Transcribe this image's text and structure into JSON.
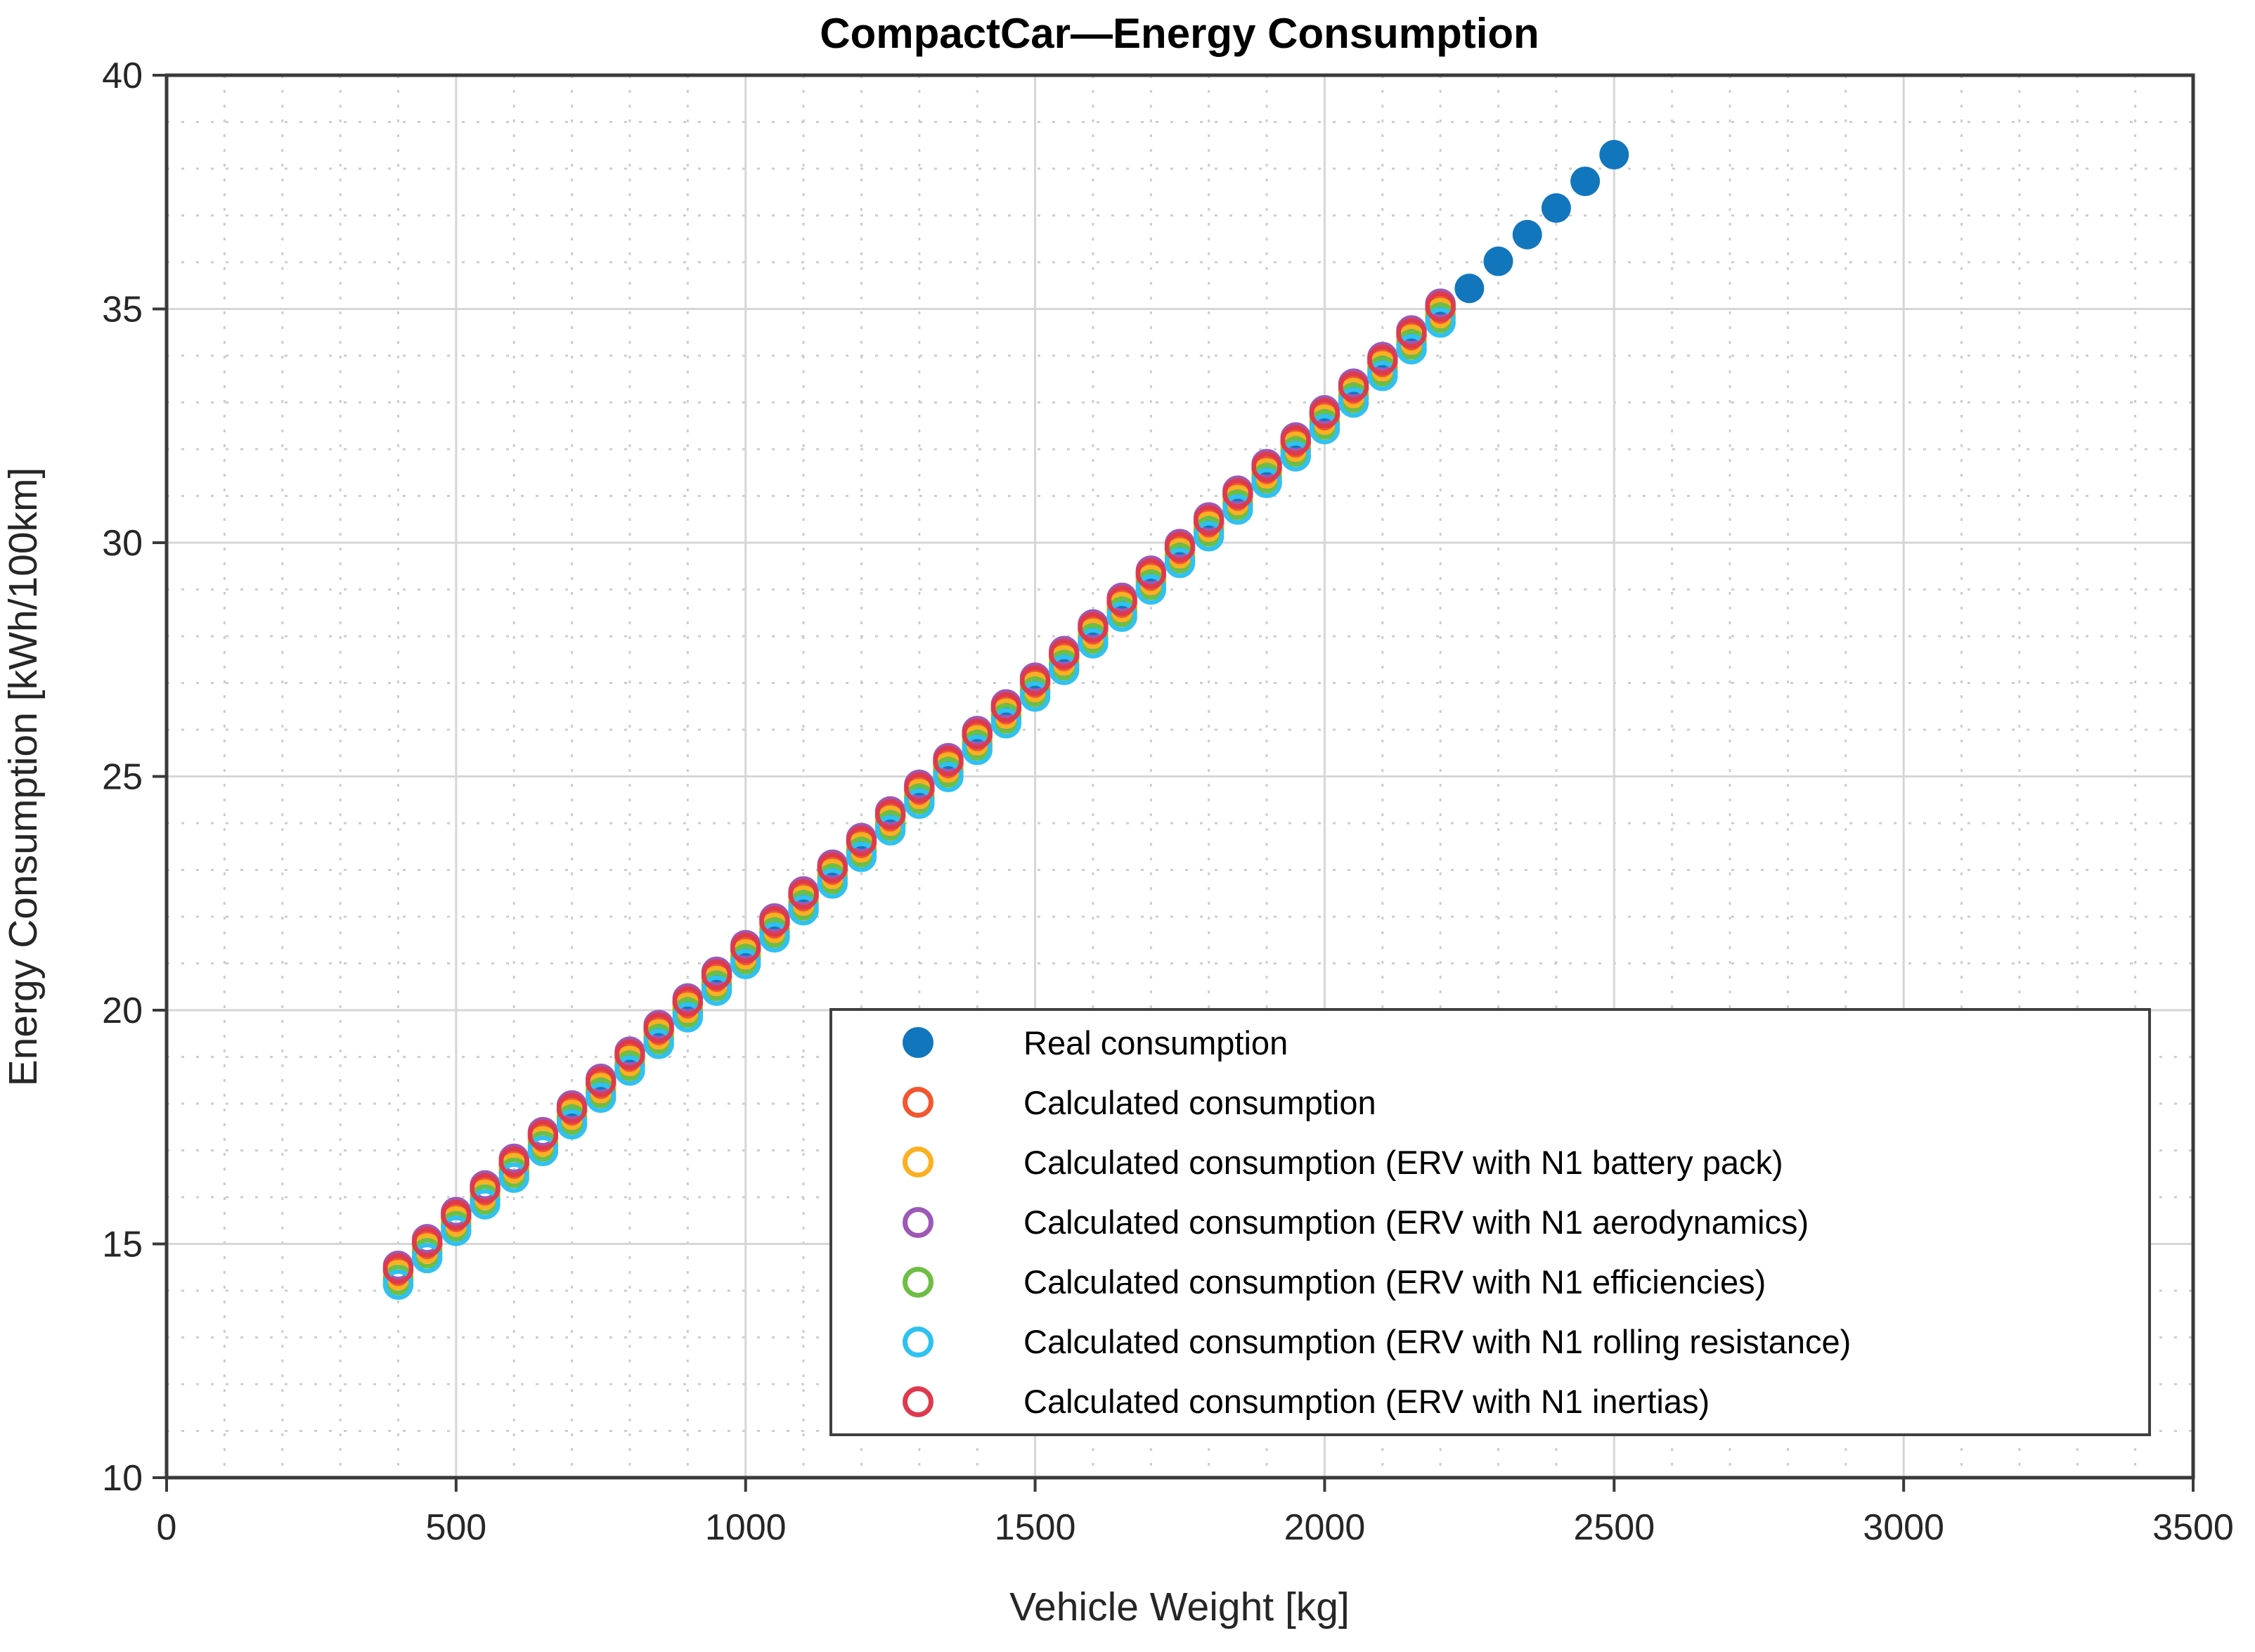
{
  "page": {
    "background": "#FFFFFF"
  },
  "chart_data": {
    "type": "scatter",
    "title": "CompactCar—Energy Consumption",
    "xlabel": "Vehicle Weight [kg]",
    "ylabel": "Energy Consumption [kWh/100km]",
    "xlim": [
      0,
      3500
    ],
    "ylim": [
      10,
      40
    ],
    "xticks": [
      0,
      500,
      1000,
      1500,
      2000,
      2500,
      3000,
      3500
    ],
    "yticks": [
      10,
      15,
      20,
      25,
      30,
      35,
      40
    ],
    "x_minor_step": 100,
    "y_minor_step": 1,
    "grid": {
      "major": true,
      "minor": true
    },
    "colors": {
      "axis": "#3A3A3A",
      "tick_label": "#262626",
      "grid_major": "#D6D6D6",
      "grid_minor": "#CDCDCD",
      "title": "#000000"
    },
    "legend_position": "inside-bottom-right",
    "series": [
      {
        "name": "Real consumption",
        "marker": "filled-circle",
        "color": "#1276BD",
        "x": [
          700,
          750,
          800,
          850,
          900,
          950,
          1000,
          1050,
          1100,
          1150,
          1200,
          1250,
          1300,
          1350,
          1400,
          1450,
          1500,
          1550,
          1600,
          1650,
          1700,
          1750,
          1800,
          1850,
          1900,
          1950,
          2000,
          2050,
          2100,
          2150,
          2200,
          2250,
          2300,
          2350,
          2400,
          2450,
          2500
        ],
        "y": [
          17.72,
          18.29,
          18.87,
          19.44,
          20.01,
          20.58,
          21.15,
          21.72,
          22.3,
          22.87,
          23.44,
          24.01,
          24.58,
          25.15,
          25.73,
          26.3,
          26.87,
          27.44,
          28.01,
          28.58,
          29.16,
          29.73,
          30.3,
          30.87,
          31.44,
          32.01,
          32.59,
          33.16,
          33.73,
          34.3,
          34.87,
          35.44,
          36.02,
          36.59,
          37.16,
          37.73,
          38.3
        ]
      },
      {
        "name": "Calculated consumption",
        "marker": "open-circle",
        "color": "#F2572F",
        "x": [
          400,
          450,
          500,
          550,
          600,
          650,
          700,
          750,
          800,
          850,
          900,
          950,
          1000,
          1050,
          1100,
          1150,
          1200,
          1250,
          1300,
          1350,
          1400,
          1450,
          1500,
          1550,
          1600,
          1650,
          1700,
          1750,
          1800,
          1850,
          1900,
          1950,
          2000,
          2050,
          2100,
          2150,
          2200
        ],
        "y": [
          14.41,
          14.98,
          15.56,
          16.13,
          16.7,
          17.27,
          17.84,
          18.41,
          18.99,
          19.56,
          20.13,
          20.7,
          21.27,
          21.84,
          22.42,
          22.99,
          23.56,
          24.13,
          24.7,
          25.27,
          25.85,
          26.42,
          26.99,
          27.56,
          28.13,
          28.7,
          29.28,
          29.85,
          30.42,
          30.99,
          31.56,
          32.13,
          32.71,
          33.28,
          33.85,
          34.42,
          34.99
        ]
      },
      {
        "name": "Calculated consumption (ERV with N1 battery pack)",
        "marker": "open-circle",
        "color": "#FBB022",
        "x": [
          400,
          450,
          500,
          550,
          600,
          650,
          700,
          750,
          800,
          850,
          900,
          950,
          1000,
          1050,
          1100,
          1150,
          1200,
          1250,
          1300,
          1350,
          1400,
          1450,
          1500,
          1550,
          1600,
          1650,
          1700,
          1750,
          1800,
          1850,
          1900,
          1950,
          2000,
          2050,
          2100,
          2150,
          2200
        ],
        "y": [
          14.33,
          14.9,
          15.48,
          16.05,
          16.62,
          17.19,
          17.76,
          18.33,
          18.91,
          19.48,
          20.05,
          20.62,
          21.19,
          21.76,
          22.34,
          22.91,
          23.48,
          24.05,
          24.62,
          25.19,
          25.77,
          26.34,
          26.91,
          27.48,
          28.05,
          28.62,
          29.2,
          29.77,
          30.34,
          30.91,
          31.48,
          32.05,
          32.63,
          33.2,
          33.77,
          34.34,
          34.91
        ]
      },
      {
        "name": "Calculated consumption (ERV with N1 aerodynamics)",
        "marker": "open-circle",
        "color": "#9C59B6",
        "x": [
          400,
          450,
          500,
          550,
          600,
          650,
          700,
          750,
          800,
          850,
          900,
          950,
          1000,
          1050,
          1100,
          1150,
          1200,
          1250,
          1300,
          1350,
          1400,
          1450,
          1500,
          1550,
          1600,
          1650,
          1700,
          1750,
          1800,
          1850,
          1900,
          1950,
          2000,
          2050,
          2100,
          2150,
          2200
        ],
        "y": [
          14.53,
          15.1,
          15.68,
          16.25,
          16.82,
          17.39,
          17.96,
          18.53,
          19.11,
          19.68,
          20.25,
          20.82,
          21.39,
          21.96,
          22.54,
          23.11,
          23.68,
          24.25,
          24.82,
          25.39,
          25.97,
          26.54,
          27.11,
          27.68,
          28.25,
          28.82,
          29.4,
          29.97,
          30.54,
          31.11,
          31.68,
          32.25,
          32.83,
          33.4,
          33.97,
          34.54,
          35.11
        ]
      },
      {
        "name": "Calculated consumption (ERV with N1 efficiencies)",
        "marker": "open-circle",
        "color": "#6DBE44",
        "x": [
          400,
          450,
          500,
          550,
          600,
          650,
          700,
          750,
          800,
          850,
          900,
          950,
          1000,
          1050,
          1100,
          1150,
          1200,
          1250,
          1300,
          1350,
          1400,
          1450,
          1500,
          1550,
          1600,
          1650,
          1700,
          1750,
          1800,
          1850,
          1900,
          1950,
          2000,
          2050,
          2100,
          2150,
          2200
        ],
        "y": [
          14.23,
          14.8,
          15.38,
          15.95,
          16.52,
          17.09,
          17.66,
          18.23,
          18.81,
          19.38,
          19.95,
          20.52,
          21.09,
          21.66,
          22.24,
          22.81,
          23.38,
          23.95,
          24.52,
          25.09,
          25.67,
          26.24,
          26.81,
          27.38,
          27.95,
          28.52,
          29.1,
          29.67,
          30.24,
          30.81,
          31.38,
          31.95,
          32.53,
          33.1,
          33.67,
          34.24,
          34.81
        ]
      },
      {
        "name": "Calculated consumption (ERV with N1 rolling resistance)",
        "marker": "open-circle",
        "color": "#30C1F0",
        "x": [
          400,
          450,
          500,
          550,
          600,
          650,
          700,
          750,
          800,
          850,
          900,
          950,
          1000,
          1050,
          1100,
          1150,
          1200,
          1250,
          1300,
          1350,
          1400,
          1450,
          1500,
          1550,
          1600,
          1650,
          1700,
          1750,
          1800,
          1850,
          1900,
          1950,
          2000,
          2050,
          2100,
          2150,
          2200
        ],
        "y": [
          14.13,
          14.7,
          15.28,
          15.85,
          16.42,
          16.99,
          17.56,
          18.13,
          18.71,
          19.28,
          19.85,
          20.42,
          20.99,
          21.56,
          22.14,
          22.71,
          23.28,
          23.85,
          24.42,
          24.99,
          25.57,
          26.14,
          26.71,
          27.28,
          27.85,
          28.42,
          29.0,
          29.57,
          30.14,
          30.71,
          31.28,
          31.85,
          32.43,
          33.0,
          33.57,
          34.14,
          34.71
        ]
      },
      {
        "name": "Calculated consumption (ERV with N1 inertias)",
        "marker": "open-circle",
        "color": "#DE3A4D",
        "x": [
          400,
          450,
          500,
          550,
          600,
          650,
          700,
          750,
          800,
          850,
          900,
          950,
          1000,
          1050,
          1100,
          1150,
          1200,
          1250,
          1300,
          1350,
          1400,
          1450,
          1500,
          1550,
          1600,
          1650,
          1700,
          1750,
          1800,
          1850,
          1900,
          1950,
          2000,
          2050,
          2100,
          2150,
          2200
        ],
        "y": [
          14.47,
          15.04,
          15.62,
          16.19,
          16.76,
          17.33,
          17.9,
          18.47,
          19.05,
          19.62,
          20.19,
          20.76,
          21.33,
          21.9,
          22.48,
          23.05,
          23.62,
          24.19,
          24.76,
          25.33,
          25.91,
          26.48,
          27.05,
          27.62,
          28.19,
          28.76,
          29.34,
          29.91,
          30.48,
          31.05,
          31.62,
          32.19,
          32.77,
          33.34,
          33.91,
          34.48,
          35.05
        ]
      }
    ]
  }
}
